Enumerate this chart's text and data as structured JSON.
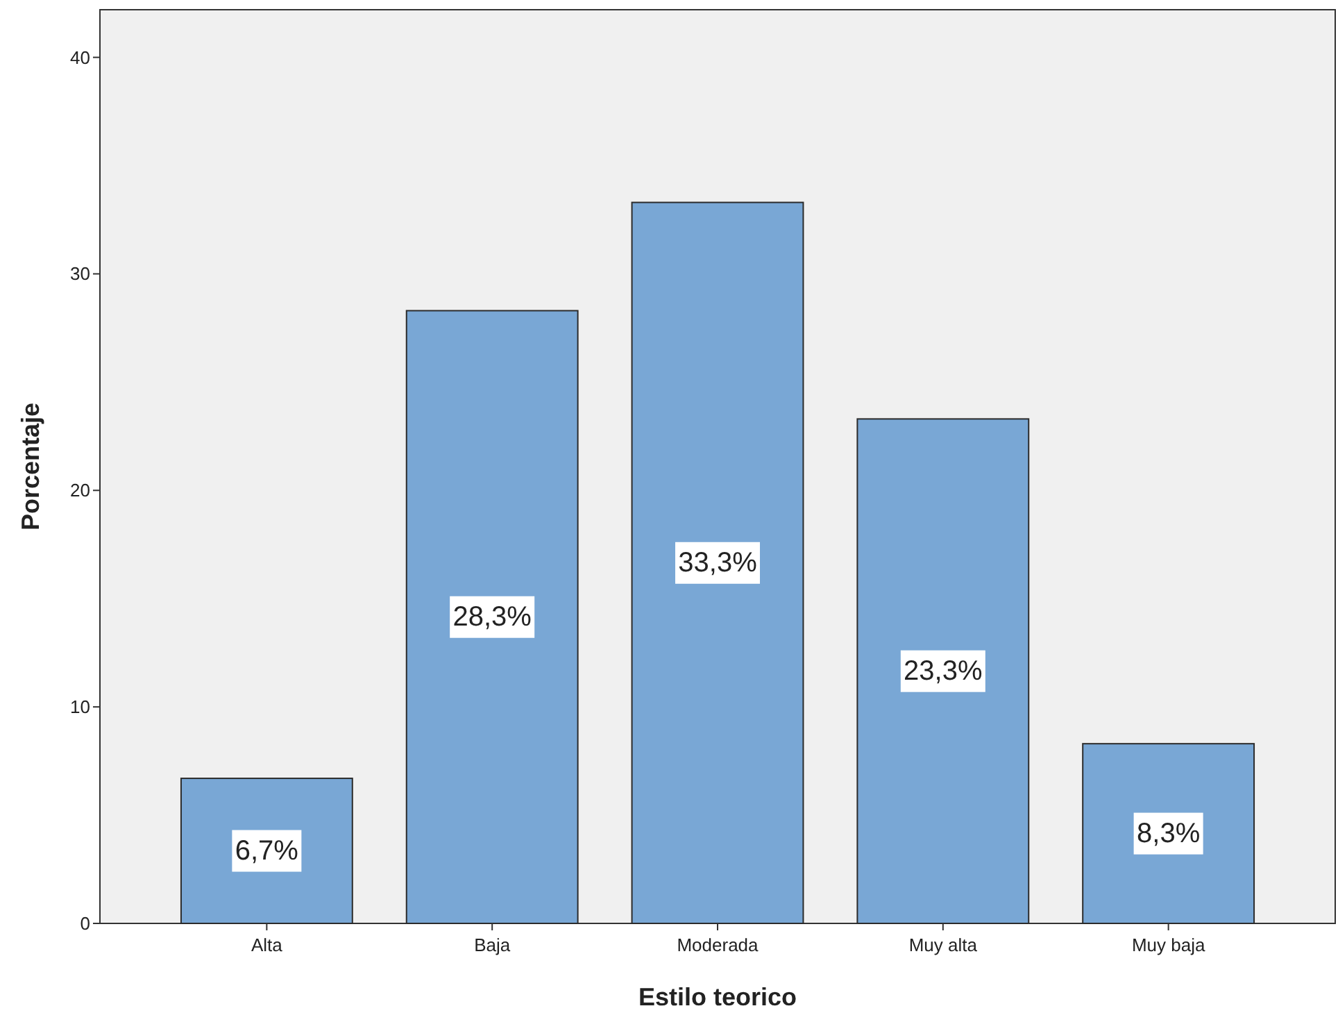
{
  "chart_data": {
    "type": "bar",
    "xlabel": "Estilo teorico",
    "ylabel": "Porcentaje",
    "categories": [
      "Alta",
      "Baja",
      "Moderada",
      "Muy alta",
      "Muy baja"
    ],
    "values": [
      6.7,
      28.3,
      33.3,
      23.3,
      8.3
    ],
    "value_labels": [
      "6,7%",
      "28,3%",
      "33,3%",
      "23,3%",
      "8,3%"
    ],
    "color": "#79a7d5",
    "ylim": [
      0,
      42.2
    ],
    "yticks": [
      0,
      10,
      20,
      30,
      40
    ],
    "grid": false
  }
}
